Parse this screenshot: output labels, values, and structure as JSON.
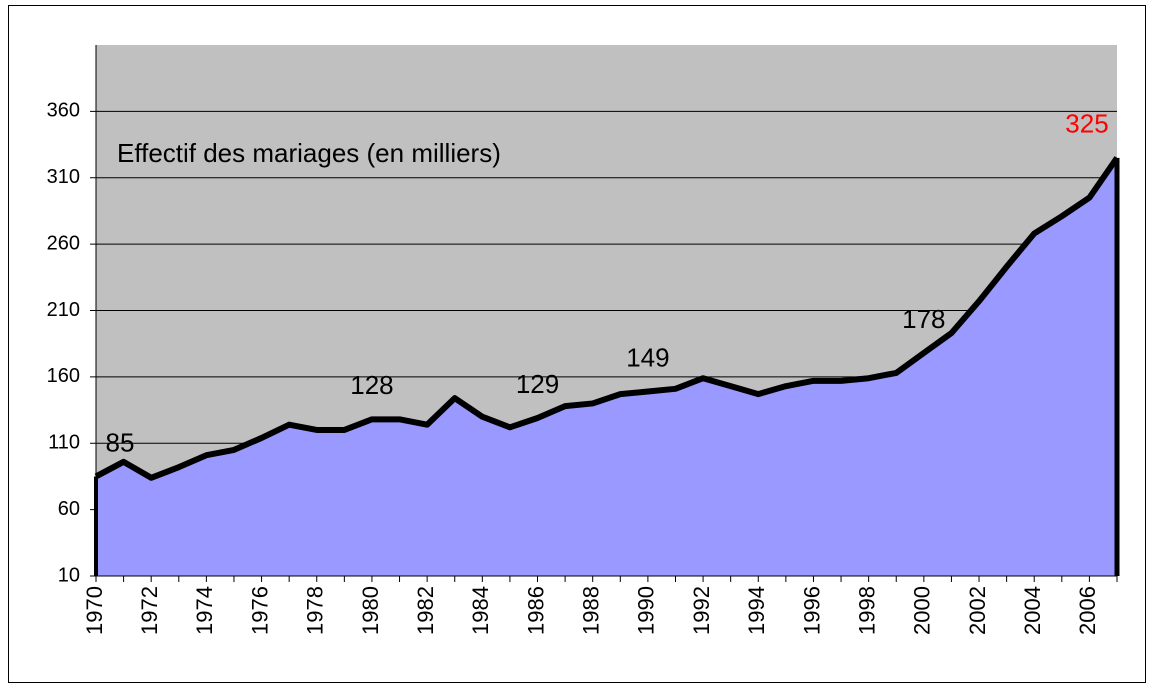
{
  "chart_data": {
    "type": "area",
    "title": "Effectif des mariages (en milliers)",
    "categories": [
      "1970",
      null,
      "1972",
      null,
      "1974",
      null,
      "1976",
      null,
      "1978",
      null,
      "1980",
      null,
      "1982",
      null,
      "1984",
      null,
      "1986",
      null,
      "1988",
      null,
      "1990",
      null,
      "1992",
      null,
      "1994",
      null,
      "1996",
      null,
      "1998",
      null,
      "2000",
      null,
      "2002",
      null,
      "2004",
      null,
      "2006",
      null
    ],
    "values": [
      85,
      96,
      84,
      92,
      101,
      105,
      114,
      124,
      120,
      120,
      128,
      128,
      124,
      144,
      130,
      122,
      129,
      138,
      140,
      147,
      149,
      151,
      159,
      153,
      147,
      153,
      157,
      157,
      159,
      163,
      178,
      193,
      217,
      243,
      268,
      281,
      295,
      325
    ],
    "color": "#9999ff",
    "line_color": "#000000",
    "background": "#c0c0c0",
    "data_labels": [
      {
        "index": 0,
        "color": "#000000"
      },
      {
        "index": 10,
        "color": "#000000"
      },
      {
        "index": 16,
        "color": "#000000"
      },
      {
        "index": 20,
        "color": "#000000"
      },
      {
        "index": 30,
        "color": "#000000"
      },
      {
        "index": 37,
        "color": "#ff0000"
      }
    ],
    "ylim": [
      10,
      410
    ],
    "yticks": [
      10,
      60,
      110,
      160,
      210,
      260,
      310,
      360
    ],
    "grid": true
  }
}
